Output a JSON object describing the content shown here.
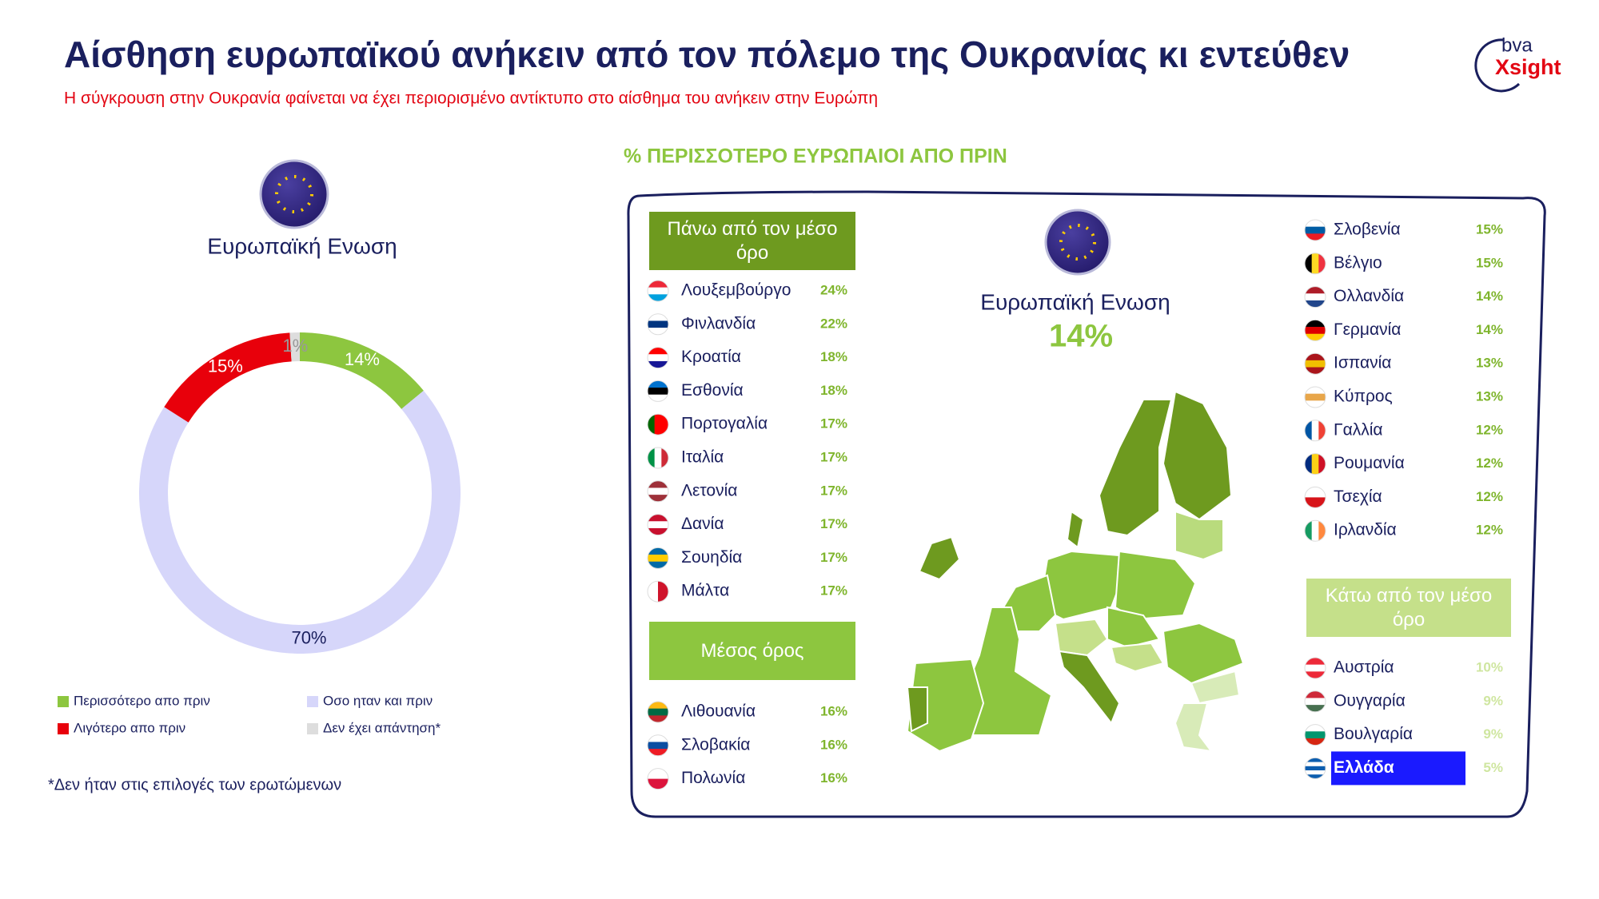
{
  "header": {
    "title": "Αίσθηση ευρωπαϊκού ανήκειν από τον πόλεμο της Ουκρανίας κι εντεύθεν",
    "subtitle": "Η σύγκρουση στην Ουκρανία φαίνεται να έχει περιορισμένο αντίκτυπο στο αίσθημα του ανήκειν στην Ευρώπη",
    "logo_top": "bva",
    "logo_bottom": "Xsight"
  },
  "chart_data": {
    "type": "pie",
    "donut": true,
    "title": "Ευρωπαϊκή Ενωση",
    "categories": [
      "Περισσότερο απο πριν",
      "Οσο ηταν και πριν",
      "Λιγότερο απο πριν",
      "Δεν έχει απάντηση*"
    ],
    "values": [
      14,
      70,
      15,
      1
    ],
    "value_labels": [
      "14%",
      "70%",
      "15%",
      "1%"
    ],
    "colors": [
      "#8dc63f",
      "#d6d6fa",
      "#e8000b",
      "#dddddd"
    ],
    "label_colors": [
      "#ffffff",
      "#1a1f5e",
      "#ffffff",
      "#999999"
    ],
    "legend_position": "bottom"
  },
  "footnote": "*Δεν ήταν στις επιλογές των ερωτώμενων",
  "countries": {
    "heading": "%  ΠΕΡΙΣΣΟΤΕΡΟ ΕΥΡΩΠΑΙΟΙ ΑΠΟ ΠΡΙΝ",
    "eu_label": "Ευρωπαϊκή Ενωση",
    "eu_value": "14%",
    "blocks": [
      {
        "label": "Πάνω από τον μέσο όρο",
        "label_color": "#6e9a1f",
        "value_color": "#7fb52d",
        "rows": [
          {
            "name": "Λουξεμβούργο",
            "value": "24%",
            "flag": [
              "#ed2939",
              "#ffffff",
              "#00a1de"
            ]
          },
          {
            "name": "Φινλανδία",
            "value": "22%",
            "flag": [
              "#ffffff",
              "#003580",
              "#ffffff"
            ]
          },
          {
            "name": "Κροατία",
            "value": "18%",
            "flag": [
              "#ff0000",
              "#ffffff",
              "#171796"
            ]
          },
          {
            "name": "Εσθονία",
            "value": "18%",
            "flag": [
              "#0072ce",
              "#000000",
              "#ffffff"
            ]
          },
          {
            "name": "Πορτογαλία",
            "value": "17%",
            "flag": [
              "#006600",
              "#ff0000",
              "#ff0000"
            ],
            "flag_vertical": true
          },
          {
            "name": "Ιταλία",
            "value": "17%",
            "flag": [
              "#009246",
              "#ffffff",
              "#ce2b37"
            ],
            "flag_vertical": true
          },
          {
            "name": "Λετονία",
            "value": "17%",
            "flag": [
              "#9e3039",
              "#ffffff",
              "#9e3039"
            ]
          },
          {
            "name": "Δανία",
            "value": "17%",
            "flag": [
              "#c8102e",
              "#ffffff",
              "#c8102e"
            ]
          },
          {
            "name": "Σουηδία",
            "value": "17%",
            "flag": [
              "#006aa7",
              "#fecc00",
              "#006aa7"
            ]
          },
          {
            "name": "Μάλτα",
            "value": "17%",
            "flag": [
              "#ffffff",
              "#cf142b"
            ],
            "flag_vertical": true
          }
        ]
      },
      {
        "value_color": "#7fb52d",
        "rows": [
          {
            "name": "Σλοβενία",
            "value": "15%",
            "flag": [
              "#ffffff",
              "#005da4",
              "#ed1c24"
            ]
          },
          {
            "name": "Βέλγιο",
            "value": "15%",
            "flag": [
              "#000000",
              "#fdda24",
              "#ef3340"
            ],
            "flag_vertical": true
          },
          {
            "name": "Ολλανδία",
            "value": "14%",
            "flag": [
              "#ae1c28",
              "#ffffff",
              "#21468b"
            ]
          },
          {
            "name": "Γερμανία",
            "value": "14%",
            "flag": [
              "#000000",
              "#dd0000",
              "#ffce00"
            ]
          },
          {
            "name": "Ισπανία",
            "value": "13%",
            "flag": [
              "#aa151b",
              "#f1bf00",
              "#aa151b"
            ]
          },
          {
            "name": "Κύπρος",
            "value": "13%",
            "flag": [
              "#ffffff",
              "#e8a64a",
              "#ffffff"
            ]
          },
          {
            "name": "Γαλλία",
            "value": "12%",
            "flag": [
              "#0055a4",
              "#ffffff",
              "#ef4135"
            ],
            "flag_vertical": true
          },
          {
            "name": "Ρουμανία",
            "value": "12%",
            "flag": [
              "#002b7f",
              "#fcd116",
              "#ce1126"
            ],
            "flag_vertical": true
          },
          {
            "name": "Τσεχία",
            "value": "12%",
            "flag": [
              "#ffffff",
              "#d7141a"
            ]
          },
          {
            "name": "Ιρλανδία",
            "value": "12%",
            "flag": [
              "#169b62",
              "#ffffff",
              "#ff883e"
            ],
            "flag_vertical": true
          }
        ]
      },
      {
        "label": "Μέσος όρος",
        "label_color": "#8dc63f",
        "value_color": "#7fb52d",
        "rows": [
          {
            "name": "Λιθουανία",
            "value": "16%",
            "flag": [
              "#fdb913",
              "#006a44",
              "#c1272d"
            ]
          },
          {
            "name": "Σλοβακία",
            "value": "16%",
            "flag": [
              "#ffffff",
              "#0b4ea2",
              "#ee1c25"
            ]
          },
          {
            "name": "Πολωνία",
            "value": "16%",
            "flag": [
              "#ffffff",
              "#dc143c"
            ]
          }
        ]
      },
      {
        "label": "Κάτω από τον μέσο όρο",
        "label_color": "#c5e08a",
        "value_color": "#cfe6a0",
        "rows": [
          {
            "name": "Αυστρία",
            "value": "10%",
            "flag": [
              "#ed2939",
              "#ffffff",
              "#ed2939"
            ]
          },
          {
            "name": "Ουγγαρία",
            "value": "9%",
            "flag": [
              "#ce2939",
              "#ffffff",
              "#477050"
            ]
          },
          {
            "name": "Βουλγαρία",
            "value": "9%",
            "flag": [
              "#ffffff",
              "#00966e",
              "#d62612"
            ]
          },
          {
            "name": "Ελλάδα",
            "value": "5%",
            "flag": [
              "#0d5eaf",
              "#ffffff",
              "#0d5eaf",
              "#ffffff",
              "#0d5eaf"
            ],
            "highlight": "#1a1aff"
          }
        ]
      }
    ]
  }
}
